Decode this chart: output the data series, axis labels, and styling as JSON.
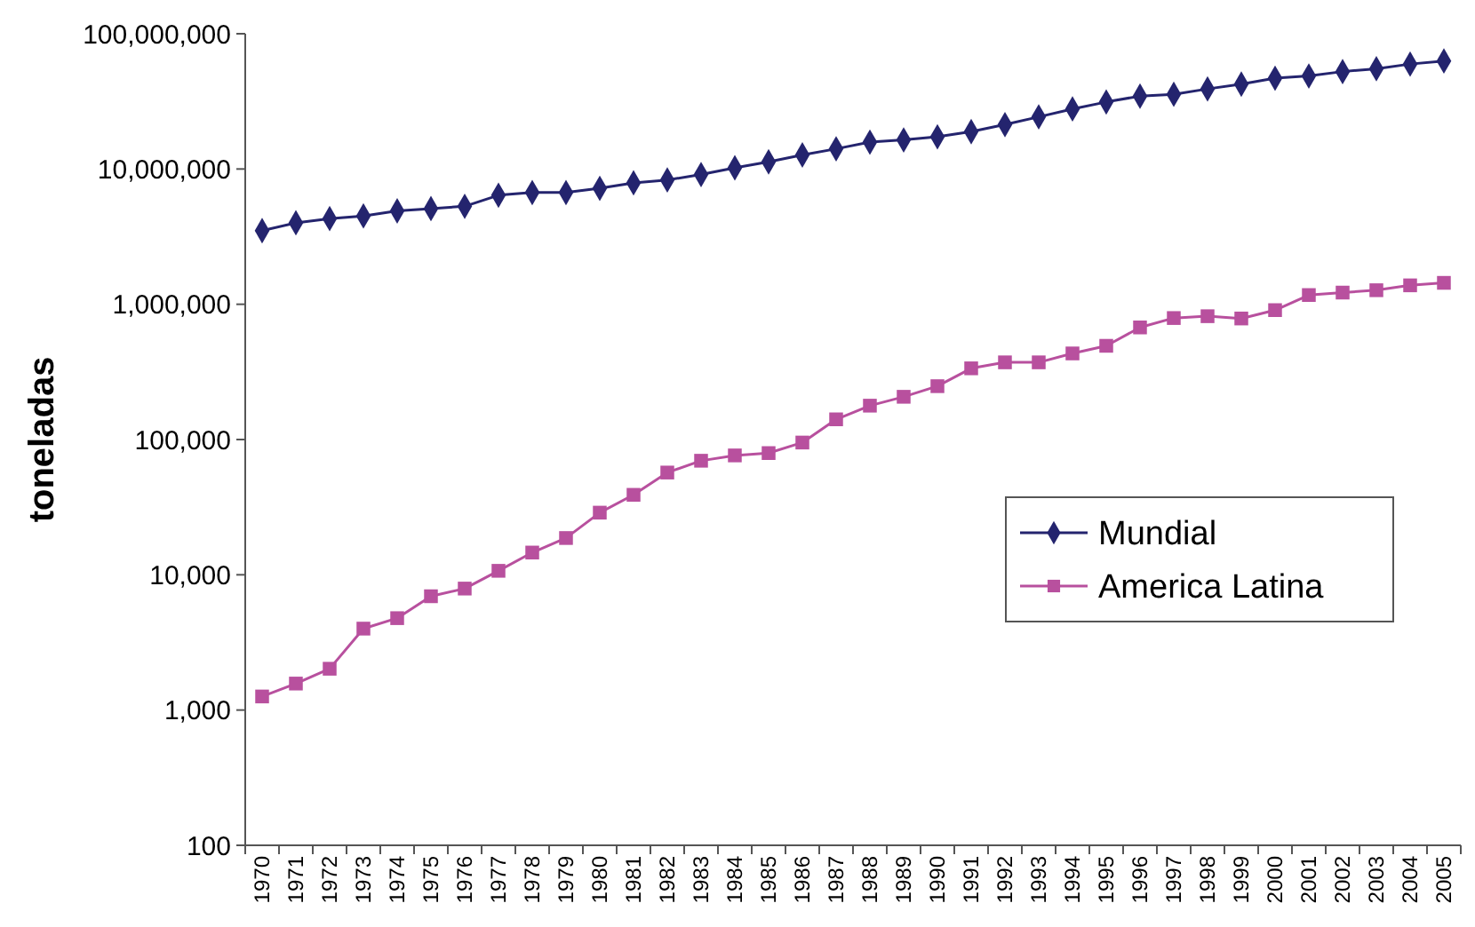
{
  "chart_data": {
    "type": "line",
    "ylabel": "toneladas",
    "log": true,
    "categories": [
      "1970",
      "1971",
      "1972",
      "1973",
      "1974",
      "1975",
      "1976",
      "1977",
      "1978",
      "1979",
      "1980",
      "1981",
      "1982",
      "1983",
      "1984",
      "1985",
      "1986",
      "1987",
      "1988",
      "1989",
      "1990",
      "1991",
      "1992",
      "1993",
      "1994",
      "1995",
      "1996",
      "1997",
      "1998",
      "1999",
      "2000",
      "2001",
      "2002",
      "2003",
      "2004",
      "2005"
    ],
    "series": [
      {
        "name": "Mundial",
        "color": "#24246e",
        "marker": "diamond",
        "values": [
          3500000,
          4000000,
          4300000,
          4500000,
          4900000,
          5100000,
          5300000,
          6400000,
          6700000,
          6700000,
          7200000,
          7900000,
          8300000,
          9100000,
          10200000,
          11300000,
          12700000,
          14100000,
          15800000,
          16400000,
          17300000,
          18900000,
          21300000,
          24300000,
          27800000,
          31300000,
          34600000,
          35700000,
          39100000,
          42400000,
          46900000,
          48700000,
          52500000,
          55100000,
          59700000,
          62900000
        ]
      },
      {
        "name": "America Latina",
        "color": "#b8509e",
        "marker": "square",
        "values": [
          1260,
          1570,
          2020,
          4000,
          4780,
          6940,
          7910,
          10700,
          14600,
          18700,
          28800,
          39000,
          57000,
          69700,
          76300,
          79400,
          95000,
          141000,
          178000,
          207000,
          248000,
          336000,
          372000,
          372000,
          433000,
          493000,
          674000,
          791000,
          816000,
          785000,
          905000,
          1170000,
          1220000,
          1270000,
          1380000,
          1440000
        ]
      }
    ],
    "ylim": [
      100,
      100000000
    ],
    "yticks": [
      {
        "value": 100,
        "label": "100"
      },
      {
        "value": 1000,
        "label": "1,000"
      },
      {
        "value": 10000,
        "label": "10,000"
      },
      {
        "value": 100000,
        "label": "100,000"
      },
      {
        "value": 1000000,
        "label": "1,000,000"
      },
      {
        "value": 10000000,
        "label": "10,000,000"
      },
      {
        "value": 100000000,
        "label": "100,000,000"
      }
    ],
    "grid": false,
    "legend": "right",
    "line_style": "solid"
  }
}
